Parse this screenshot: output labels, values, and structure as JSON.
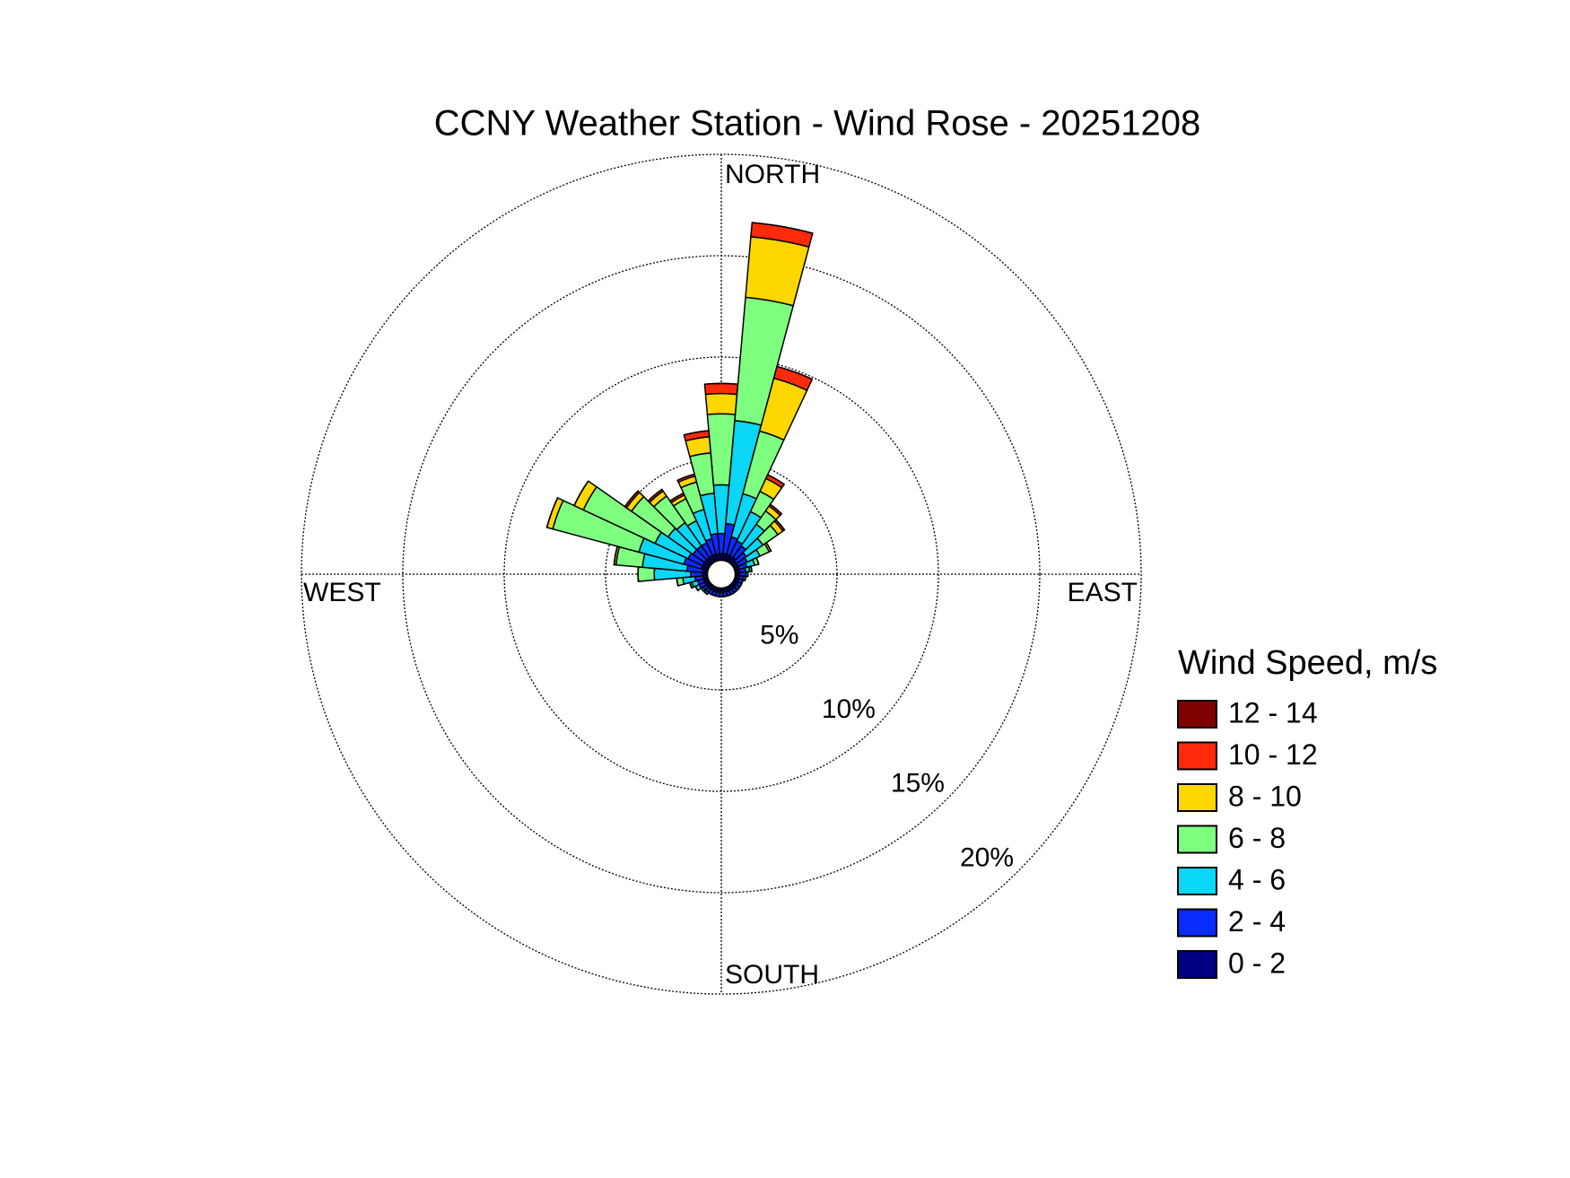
{
  "chart_data": {
    "type": "windrose",
    "title": "CCNY Weather Station - Wind Rose - 20251208",
    "legend_title": "Wind Speed, m/s",
    "direction_labels": [
      "NORTH",
      "EAST",
      "SOUTH",
      "WEST"
    ],
    "theta": [
      0,
      10,
      20,
      30,
      40,
      50,
      60,
      70,
      80,
      90,
      100,
      110,
      120,
      130,
      140,
      150,
      160,
      170,
      180,
      190,
      200,
      210,
      220,
      230,
      240,
      250,
      260,
      270,
      280,
      290,
      300,
      310,
      320,
      330,
      340,
      350
    ],
    "rlim": [
      0,
      20
    ],
    "rticks": [
      {
        "value": 5,
        "label": "5%"
      },
      {
        "value": 10,
        "label": "10%"
      },
      {
        "value": 15,
        "label": "15%"
      },
      {
        "value": 20,
        "label": "20%"
      }
    ],
    "grid": true,
    "legend_position": "right",
    "series": [
      {
        "name": "0 - 2",
        "color": "#000080",
        "values": [
          0.3,
          0.3,
          0.3,
          0.3,
          0.3,
          0.2,
          0.2,
          0.2,
          0.2,
          0.2,
          0.2,
          0.2,
          0.2,
          0.2,
          0.2,
          0.2,
          0.2,
          0.2,
          0.2,
          0.2,
          0.2,
          0.2,
          0.2,
          0.2,
          0.2,
          0.2,
          0.2,
          0.2,
          0.2,
          0.3,
          0.3,
          0.3,
          0.3,
          0.3,
          0.3,
          0.3
        ]
      },
      {
        "name": "2 - 4",
        "color": "#0a2cff",
        "values": [
          1.0,
          1.5,
          0.9,
          0.8,
          0.7,
          0.6,
          0.5,
          0.4,
          0.3,
          0.3,
          0.2,
          0.2,
          0.2,
          0.2,
          0.2,
          0.2,
          0.2,
          0.2,
          0.2,
          0.2,
          0.2,
          0.2,
          0.2,
          0.2,
          0.3,
          0.3,
          0.4,
          0.6,
          0.8,
          0.9,
          0.8,
          0.7,
          0.7,
          0.7,
          0.8,
          1.0
        ]
      },
      {
        "name": "4 - 6",
        "color": "#0ad6f5",
        "values": [
          2.4,
          5.1,
          2.2,
          1.6,
          1.3,
          1.0,
          0.7,
          0.4,
          0.2,
          0.1,
          0.1,
          0,
          0,
          0,
          0,
          0,
          0,
          0,
          0,
          0,
          0,
          0,
          0.1,
          0.1,
          0.2,
          0.3,
          0.6,
          1.8,
          2.2,
          2.3,
          1.8,
          1.5,
          1.4,
          1.2,
          1.5,
          2.0
        ]
      },
      {
        "name": "6 - 8",
        "color": "#7fff7f",
        "values": [
          3.5,
          6.1,
          3.2,
          1.1,
          0.8,
          0.9,
          0.5,
          0.2,
          0.1,
          0,
          0,
          0,
          0,
          0,
          0,
          0,
          0,
          0,
          0,
          0,
          0,
          0,
          0,
          0,
          0,
          0.1,
          0.3,
          0.8,
          1.3,
          4.4,
          3.9,
          2.2,
          1.6,
          1.2,
          1.4,
          2.0
        ]
      },
      {
        "name": "8 - 10",
        "color": "#ffd700",
        "values": [
          1.0,
          3.0,
          2.7,
          0.7,
          0.3,
          0.3,
          0.1,
          0,
          0,
          0,
          0,
          0,
          0,
          0,
          0,
          0,
          0,
          0,
          0,
          0,
          0,
          0,
          0,
          0,
          0,
          0,
          0,
          0,
          0.1,
          0.3,
          0.5,
          0.3,
          0.3,
          0.2,
          0.3,
          0.8
        ]
      },
      {
        "name": "10 - 12",
        "color": "#ff2a0a",
        "values": [
          0.5,
          0.7,
          0.6,
          0.2,
          0.1,
          0.1,
          0,
          0,
          0,
          0,
          0,
          0,
          0,
          0,
          0,
          0,
          0,
          0,
          0,
          0,
          0,
          0,
          0,
          0,
          0,
          0,
          0,
          0,
          0,
          0,
          0,
          0.1,
          0.1,
          0.1,
          0.1,
          0.3
        ]
      },
      {
        "name": "12 - 14",
        "color": "#800000",
        "values": [
          0,
          0,
          0,
          0,
          0,
          0,
          0,
          0,
          0,
          0,
          0,
          0,
          0,
          0,
          0,
          0,
          0,
          0,
          0,
          0,
          0,
          0,
          0,
          0,
          0,
          0,
          0,
          0,
          0,
          0,
          0,
          0,
          0,
          0,
          0,
          0
        ]
      }
    ]
  }
}
